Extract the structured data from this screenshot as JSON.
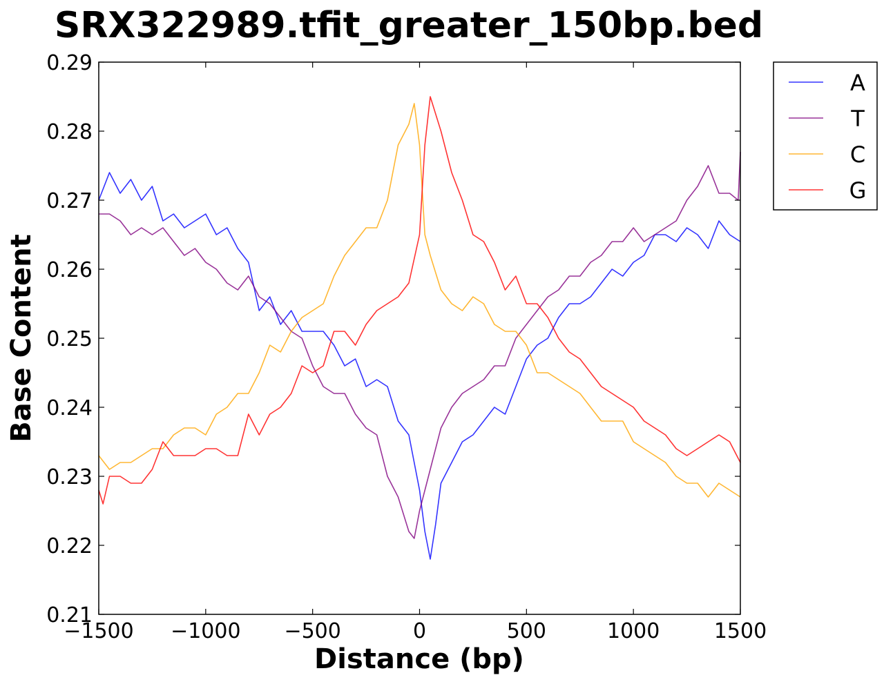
{
  "chart_data": {
    "type": "line",
    "title": "SRX322989.tfit_greater_150bp.bed",
    "xlabel": "Distance (bp)",
    "ylabel": "Base Content",
    "xlim": [
      -1500,
      1500
    ],
    "ylim": [
      0.21,
      0.29
    ],
    "x_ticks": [
      -1500,
      -1000,
      -500,
      0,
      500,
      1000,
      1500
    ],
    "x_tick_labels": [
      "−1500",
      "−1000",
      "−500",
      "0",
      "500",
      "1000",
      "1500"
    ],
    "y_ticks": [
      0.21,
      0.22,
      0.23,
      0.24,
      0.25,
      0.26,
      0.27,
      0.28,
      0.29
    ],
    "y_tick_labels": [
      "0.21",
      "0.22",
      "0.23",
      "0.24",
      "0.25",
      "0.26",
      "0.27",
      "0.28",
      "0.29"
    ],
    "grid": false,
    "legend_position": "outside-top-right",
    "series": [
      {
        "name": "A",
        "color": "#0000ff",
        "x": [
          -1500,
          -1450,
          -1400,
          -1350,
          -1300,
          -1250,
          -1200,
          -1150,
          -1100,
          -1050,
          -1000,
          -950,
          -900,
          -850,
          -800,
          -750,
          -700,
          -650,
          -600,
          -550,
          -500,
          -450,
          -400,
          -350,
          -300,
          -250,
          -200,
          -150,
          -100,
          -50,
          0,
          25,
          50,
          75,
          100,
          150,
          200,
          250,
          300,
          350,
          400,
          450,
          500,
          550,
          600,
          650,
          700,
          750,
          800,
          850,
          900,
          950,
          1000,
          1050,
          1100,
          1150,
          1200,
          1250,
          1300,
          1350,
          1400,
          1450,
          1500
        ],
        "y": [
          0.27,
          0.274,
          0.271,
          0.273,
          0.27,
          0.272,
          0.267,
          0.268,
          0.266,
          0.267,
          0.268,
          0.265,
          0.266,
          0.263,
          0.261,
          0.254,
          0.256,
          0.252,
          0.254,
          0.251,
          0.251,
          0.251,
          0.249,
          0.246,
          0.247,
          0.243,
          0.244,
          0.243,
          0.238,
          0.236,
          0.228,
          0.222,
          0.218,
          0.223,
          0.229,
          0.232,
          0.235,
          0.236,
          0.238,
          0.24,
          0.239,
          0.243,
          0.247,
          0.249,
          0.25,
          0.253,
          0.255,
          0.255,
          0.256,
          0.258,
          0.26,
          0.259,
          0.261,
          0.262,
          0.265,
          0.265,
          0.264,
          0.266,
          0.265,
          0.263,
          0.267,
          0.265,
          0.264
        ]
      },
      {
        "name": "T",
        "color": "#800080",
        "x": [
          -1500,
          -1450,
          -1400,
          -1350,
          -1300,
          -1250,
          -1200,
          -1150,
          -1100,
          -1050,
          -1000,
          -950,
          -900,
          -850,
          -800,
          -750,
          -700,
          -650,
          -600,
          -550,
          -500,
          -450,
          -400,
          -350,
          -300,
          -250,
          -200,
          -150,
          -100,
          -50,
          -25,
          0,
          50,
          100,
          150,
          200,
          250,
          300,
          350,
          400,
          450,
          500,
          550,
          600,
          650,
          700,
          750,
          800,
          850,
          900,
          950,
          1000,
          1050,
          1100,
          1150,
          1200,
          1250,
          1300,
          1350,
          1400,
          1450,
          1490,
          1500
        ],
        "y": [
          0.268,
          0.268,
          0.267,
          0.265,
          0.266,
          0.265,
          0.266,
          0.264,
          0.262,
          0.263,
          0.261,
          0.26,
          0.258,
          0.257,
          0.259,
          0.256,
          0.255,
          0.253,
          0.251,
          0.25,
          0.246,
          0.243,
          0.242,
          0.242,
          0.239,
          0.237,
          0.236,
          0.23,
          0.227,
          0.222,
          0.221,
          0.225,
          0.231,
          0.237,
          0.24,
          0.242,
          0.243,
          0.244,
          0.246,
          0.246,
          0.25,
          0.252,
          0.254,
          0.256,
          0.257,
          0.259,
          0.259,
          0.261,
          0.262,
          0.264,
          0.264,
          0.266,
          0.264,
          0.265,
          0.266,
          0.267,
          0.27,
          0.272,
          0.275,
          0.271,
          0.271,
          0.27,
          0.277
        ]
      },
      {
        "name": "C",
        "color": "#ffa500",
        "x": [
          -1500,
          -1450,
          -1400,
          -1350,
          -1300,
          -1250,
          -1200,
          -1150,
          -1100,
          -1050,
          -1000,
          -950,
          -900,
          -850,
          -800,
          -750,
          -700,
          -650,
          -600,
          -550,
          -500,
          -450,
          -400,
          -350,
          -300,
          -250,
          -200,
          -150,
          -100,
          -50,
          -25,
          0,
          25,
          50,
          100,
          150,
          200,
          250,
          300,
          350,
          400,
          450,
          500,
          550,
          600,
          650,
          700,
          750,
          800,
          850,
          900,
          950,
          1000,
          1050,
          1100,
          1150,
          1200,
          1250,
          1300,
          1350,
          1400,
          1450,
          1500
        ],
        "y": [
          0.233,
          0.231,
          0.232,
          0.232,
          0.233,
          0.234,
          0.234,
          0.236,
          0.237,
          0.237,
          0.236,
          0.239,
          0.24,
          0.242,
          0.242,
          0.245,
          0.249,
          0.248,
          0.251,
          0.253,
          0.254,
          0.255,
          0.259,
          0.262,
          0.264,
          0.266,
          0.266,
          0.27,
          0.278,
          0.281,
          0.284,
          0.278,
          0.265,
          0.262,
          0.257,
          0.255,
          0.254,
          0.256,
          0.255,
          0.252,
          0.251,
          0.251,
          0.249,
          0.245,
          0.245,
          0.244,
          0.243,
          0.242,
          0.24,
          0.238,
          0.238,
          0.238,
          0.235,
          0.234,
          0.233,
          0.232,
          0.23,
          0.229,
          0.229,
          0.227,
          0.229,
          0.228,
          0.227
        ]
      },
      {
        "name": "G",
        "color": "#ff0000",
        "x": [
          -1500,
          -1480,
          -1450,
          -1400,
          -1350,
          -1300,
          -1250,
          -1200,
          -1150,
          -1100,
          -1050,
          -1000,
          -950,
          -900,
          -850,
          -800,
          -750,
          -700,
          -650,
          -600,
          -550,
          -500,
          -450,
          -400,
          -350,
          -300,
          -250,
          -200,
          -150,
          -100,
          -50,
          0,
          25,
          50,
          100,
          150,
          200,
          250,
          300,
          350,
          400,
          450,
          500,
          550,
          600,
          650,
          700,
          750,
          800,
          850,
          900,
          950,
          1000,
          1050,
          1100,
          1150,
          1200,
          1250,
          1300,
          1350,
          1400,
          1450,
          1500
        ],
        "y": [
          0.228,
          0.226,
          0.23,
          0.23,
          0.229,
          0.229,
          0.231,
          0.235,
          0.233,
          0.233,
          0.233,
          0.234,
          0.234,
          0.233,
          0.233,
          0.239,
          0.236,
          0.239,
          0.24,
          0.242,
          0.246,
          0.245,
          0.246,
          0.251,
          0.251,
          0.249,
          0.252,
          0.254,
          0.255,
          0.256,
          0.258,
          0.265,
          0.278,
          0.285,
          0.28,
          0.274,
          0.27,
          0.265,
          0.264,
          0.261,
          0.257,
          0.259,
          0.255,
          0.255,
          0.253,
          0.25,
          0.248,
          0.247,
          0.245,
          0.243,
          0.242,
          0.241,
          0.24,
          0.238,
          0.237,
          0.236,
          0.234,
          0.233,
          0.234,
          0.235,
          0.236,
          0.235,
          0.232
        ]
      }
    ]
  }
}
